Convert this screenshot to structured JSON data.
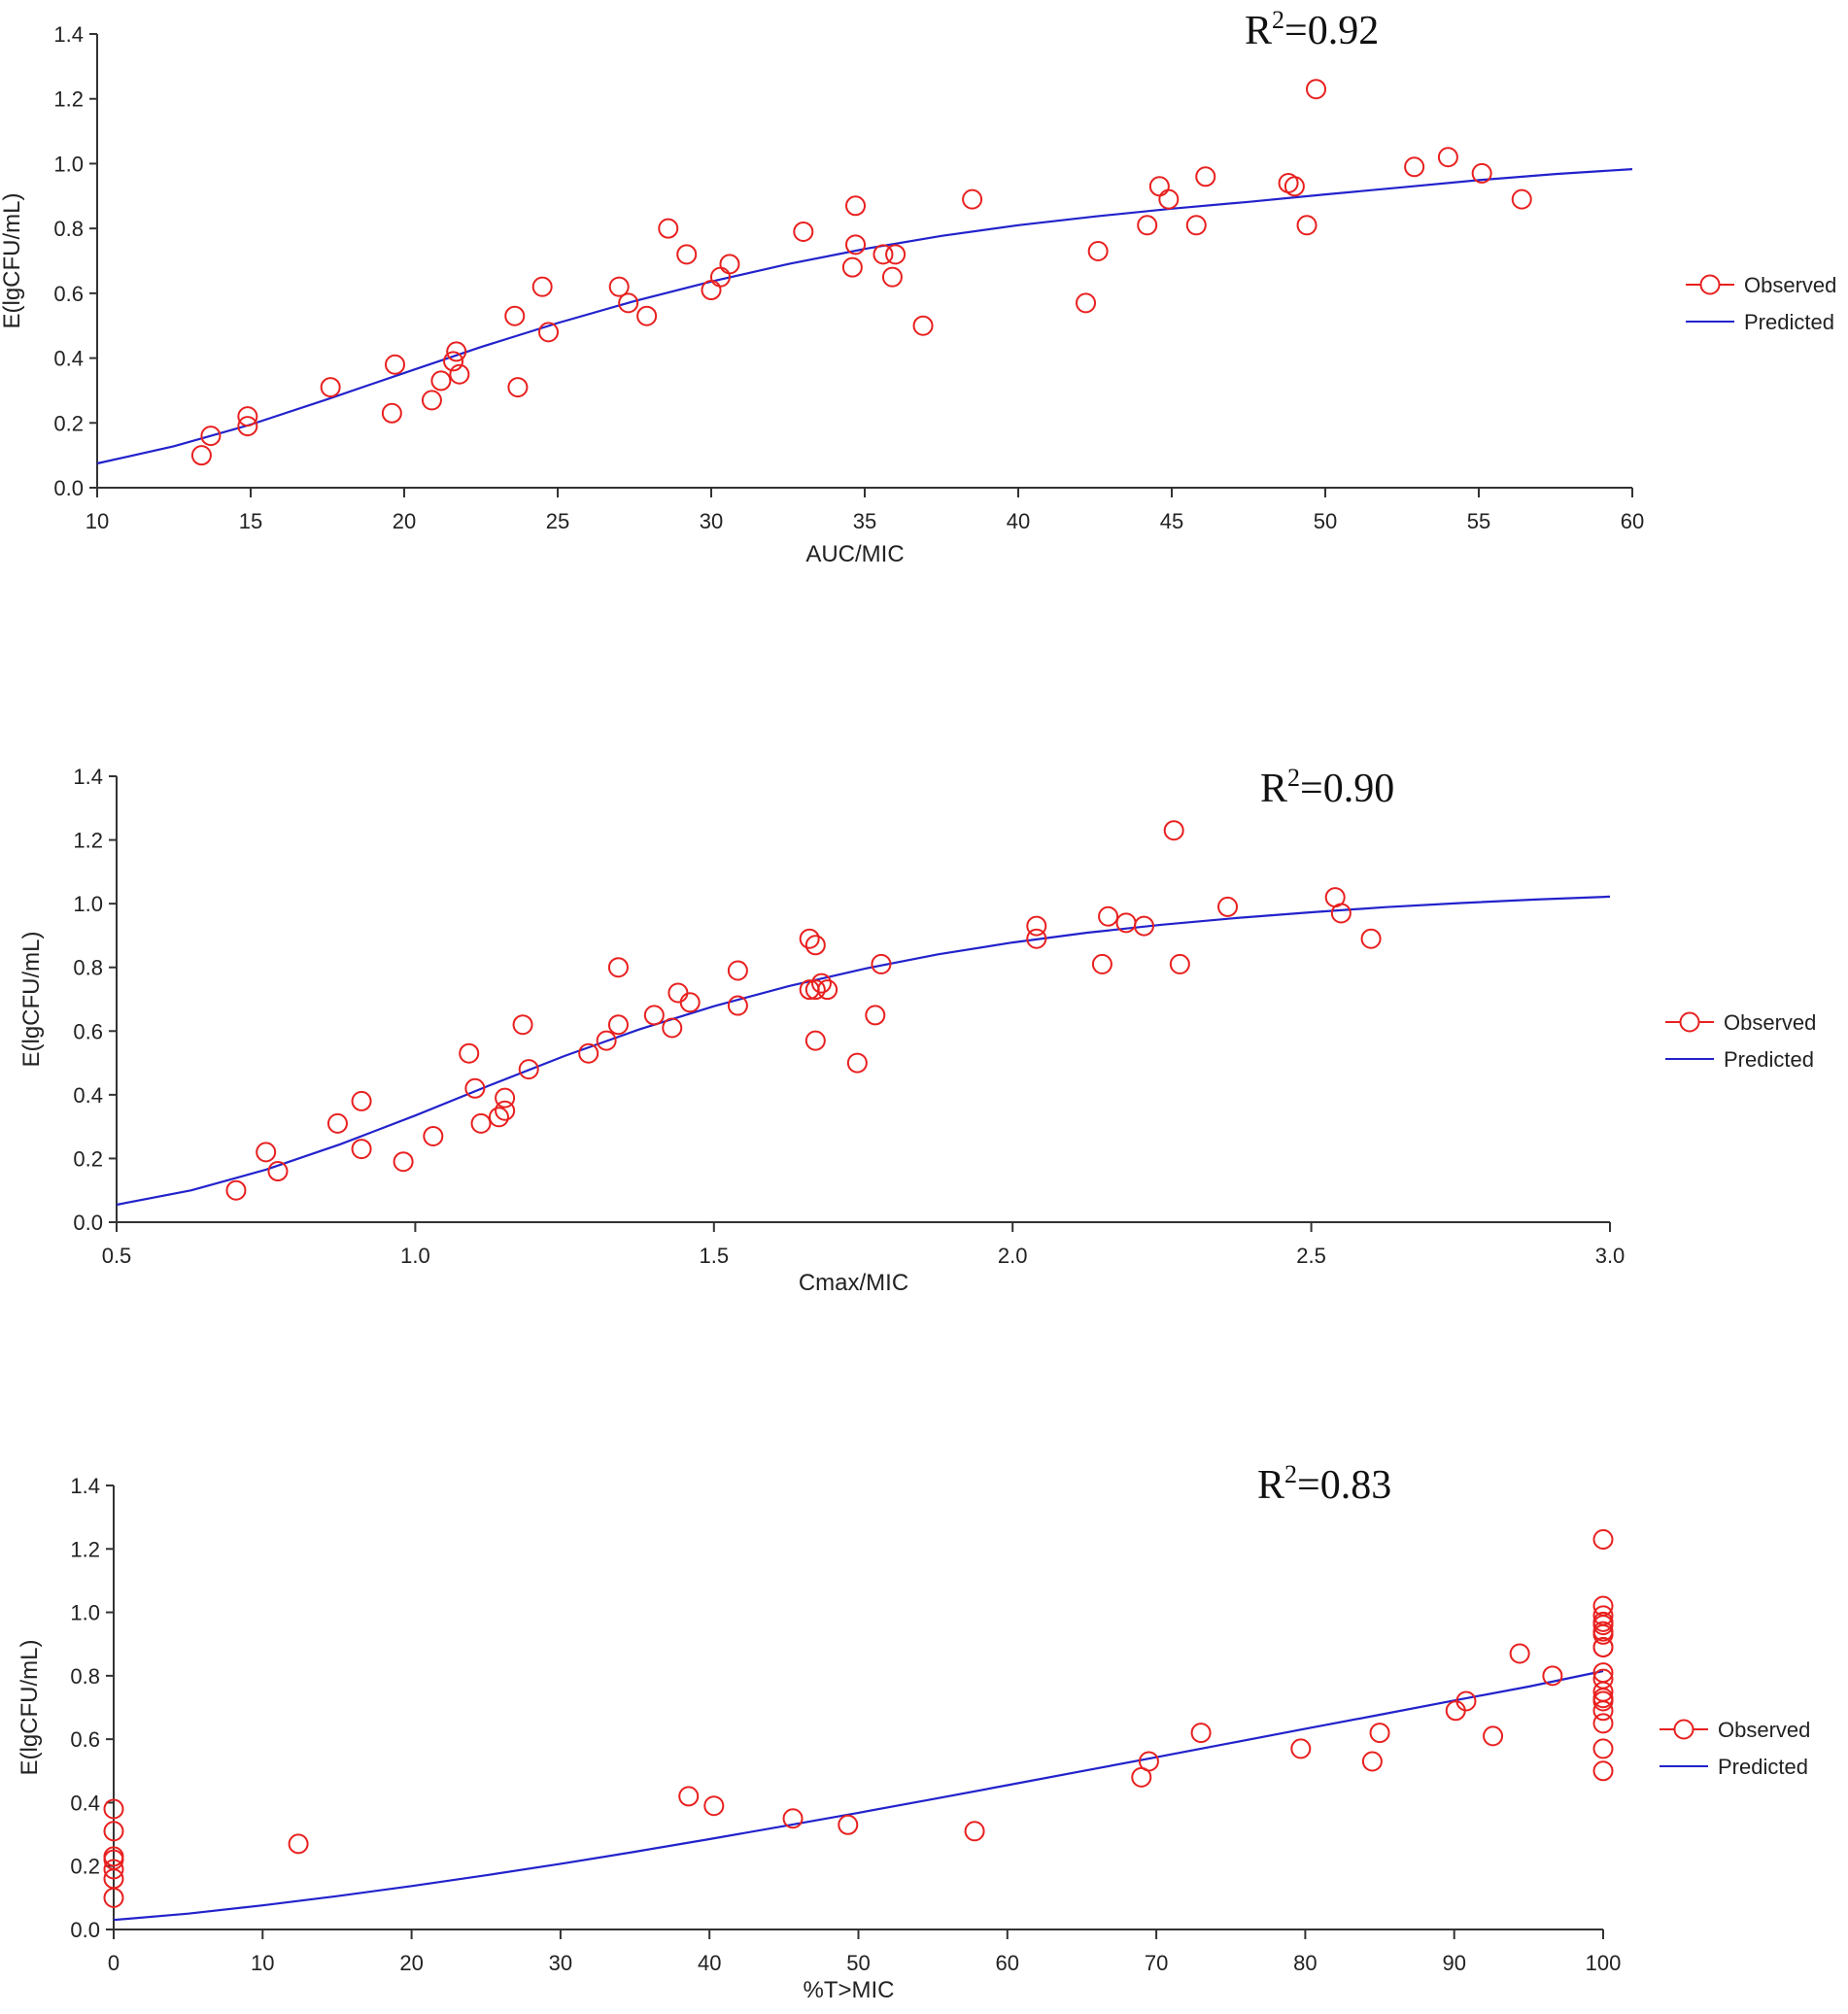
{
  "chart_data": [
    {
      "type": "scatter",
      "title": "",
      "xlabel": "AUC/MIC",
      "ylabel": "E(lgCFU/mL)",
      "annotation": {
        "prefix": "R",
        "sup": "2",
        "value": "=0.92"
      },
      "xlim": [
        10,
        60
      ],
      "ylim": [
        0.0,
        1.4
      ],
      "xticks": [
        10,
        15,
        20,
        25,
        30,
        35,
        40,
        45,
        50,
        55,
        60
      ],
      "xtick_labels": [
        "10",
        "15",
        "20",
        "25",
        "30",
        "35",
        "40",
        "45",
        "50",
        "55",
        "60"
      ],
      "yticks": [
        0.0,
        0.2,
        0.4,
        0.6,
        0.8,
        1.0,
        1.2,
        1.4
      ],
      "ytick_labels": [
        "0.0",
        "0.2",
        "0.4",
        "0.6",
        "0.8",
        "1.0",
        "1.2",
        "1.4"
      ],
      "grid": false,
      "legend": {
        "position": "right",
        "observed_label": "Observed",
        "predicted_label": "Predicted"
      },
      "colors": {
        "observed": "#e8201f",
        "predicted": "#2222cc",
        "axis": "#333333"
      },
      "series": [
        {
          "name": "Observed",
          "kind": "markers",
          "x": [
            13.4,
            13.7,
            14.9,
            14.9,
            17.6,
            19.6,
            19.7,
            20.9,
            21.2,
            21.6,
            21.7,
            21.8,
            23.6,
            23.7,
            24.5,
            24.7,
            27.0,
            27.3,
            27.9,
            28.6,
            29.2,
            30.0,
            30.3,
            30.6,
            33.0,
            34.6,
            34.7,
            34.7,
            35.6,
            35.9,
            36.0,
            36.9,
            38.5,
            42.2,
            42.6,
            44.2,
            44.6,
            44.9,
            45.8,
            46.1,
            48.8,
            49.0,
            49.4,
            49.7,
            52.9,
            54.0,
            55.1,
            56.4
          ],
          "y": [
            0.1,
            0.16,
            0.19,
            0.22,
            0.31,
            0.23,
            0.38,
            0.27,
            0.33,
            0.39,
            0.42,
            0.35,
            0.53,
            0.31,
            0.62,
            0.48,
            0.62,
            0.57,
            0.53,
            0.8,
            0.72,
            0.61,
            0.65,
            0.69,
            0.79,
            0.68,
            0.87,
            0.75,
            0.72,
            0.65,
            0.72,
            0.5,
            0.89,
            0.57,
            0.73,
            0.81,
            0.93,
            0.89,
            0.81,
            0.96,
            0.94,
            0.93,
            0.81,
            1.23,
            0.99,
            1.02,
            0.97,
            0.89
          ]
        },
        {
          "name": "Predicted",
          "kind": "line",
          "x": [
            10,
            12.5,
            15,
            17.5,
            20,
            22.5,
            25,
            27.5,
            30,
            32.5,
            35,
            37.5,
            40,
            42.5,
            45,
            47.5,
            50,
            52.5,
            55,
            57.5,
            60
          ],
          "y": [
            0.075,
            0.128,
            0.195,
            0.273,
            0.354,
            0.434,
            0.508,
            0.576,
            0.636,
            0.69,
            0.737,
            0.777,
            0.81,
            0.837,
            0.861,
            0.882,
            0.905,
            0.927,
            0.949,
            0.968,
            0.983
          ]
        }
      ]
    },
    {
      "type": "scatter",
      "title": "",
      "xlabel": "Cmax/MIC",
      "ylabel": "E(lgCFU/mL)",
      "annotation": {
        "prefix": "R",
        "sup": "2",
        "value": "=0.90"
      },
      "xlim": [
        0.5,
        3.0
      ],
      "ylim": [
        0.0,
        1.4
      ],
      "xticks": [
        0.5,
        1.0,
        1.5,
        2.0,
        2.5,
        3.0
      ],
      "xtick_labels": [
        "0.5",
        "1.0",
        "1.5",
        "2.0",
        "2.5",
        "3.0"
      ],
      "yticks": [
        0.0,
        0.2,
        0.4,
        0.6,
        0.8,
        1.0,
        1.2,
        1.4
      ],
      "ytick_labels": [
        "0.0",
        "0.2",
        "0.4",
        "0.6",
        "0.8",
        "1.0",
        "1.2",
        "1.4"
      ],
      "grid": false,
      "legend": {
        "position": "right",
        "observed_label": "Observed",
        "predicted_label": "Predicted"
      },
      "colors": {
        "observed": "#e8201f",
        "predicted": "#2222cc",
        "axis": "#333333"
      },
      "series": [
        {
          "name": "Observed",
          "kind": "markers",
          "x": [
            0.7,
            0.75,
            0.77,
            0.87,
            0.91,
            0.91,
            0.98,
            1.03,
            1.09,
            1.1,
            1.11,
            1.14,
            1.15,
            1.15,
            1.18,
            1.19,
            1.29,
            1.32,
            1.34,
            1.34,
            1.4,
            1.43,
            1.44,
            1.46,
            1.54,
            1.54,
            1.66,
            1.66,
            1.67,
            1.67,
            1.67,
            1.68,
            1.69,
            1.74,
            1.77,
            1.78,
            2.04,
            2.04,
            2.15,
            2.16,
            2.19,
            2.22,
            2.27,
            2.28,
            2.36,
            2.54,
            2.55,
            2.6
          ],
          "y": [
            0.1,
            0.22,
            0.16,
            0.31,
            0.23,
            0.38,
            0.19,
            0.27,
            0.53,
            0.42,
            0.31,
            0.33,
            0.35,
            0.39,
            0.62,
            0.48,
            0.53,
            0.57,
            0.62,
            0.8,
            0.65,
            0.61,
            0.72,
            0.69,
            0.68,
            0.79,
            0.89,
            0.73,
            0.87,
            0.57,
            0.73,
            0.75,
            0.73,
            0.5,
            0.65,
            0.81,
            0.89,
            0.93,
            0.81,
            0.96,
            0.94,
            0.93,
            1.23,
            0.81,
            0.99,
            1.02,
            0.97,
            0.89
          ]
        },
        {
          "name": "Predicted",
          "kind": "line",
          "x": [
            0.5,
            0.625,
            0.75,
            0.875,
            1.0,
            1.125,
            1.25,
            1.375,
            1.5,
            1.625,
            1.75,
            1.875,
            2.0,
            2.125,
            2.25,
            2.375,
            2.5,
            2.625,
            2.75,
            2.875,
            3.0
          ],
          "y": [
            0.055,
            0.1,
            0.165,
            0.245,
            0.335,
            0.43,
            0.522,
            0.605,
            0.678,
            0.741,
            0.795,
            0.841,
            0.878,
            0.909,
            0.934,
            0.955,
            0.973,
            0.989,
            1.002,
            1.013,
            1.022
          ]
        }
      ]
    },
    {
      "type": "scatter",
      "title": "",
      "xlabel": "%T>MIC",
      "ylabel": "E(lgCFU/mL)",
      "annotation": {
        "prefix": "R",
        "sup": "2",
        "value": "=0.83"
      },
      "xlim": [
        0,
        100
      ],
      "ylim": [
        0.0,
        1.4
      ],
      "xticks": [
        0,
        10,
        20,
        30,
        40,
        50,
        60,
        70,
        80,
        90,
        100
      ],
      "xtick_labels": [
        "0",
        "10",
        "20",
        "30",
        "40",
        "50",
        "60",
        "70",
        "80",
        "90",
        "100"
      ],
      "yticks": [
        0.0,
        0.2,
        0.4,
        0.6,
        0.8,
        1.0,
        1.2,
        1.4
      ],
      "ytick_labels": [
        "0.0",
        "0.2",
        "0.4",
        "0.6",
        "0.8",
        "1.0",
        "1.2",
        "1.4"
      ],
      "grid": false,
      "legend": {
        "position": "right",
        "observed_label": "Observed",
        "predicted_label": "Predicted"
      },
      "colors": {
        "observed": "#e8201f",
        "predicted": "#2222cc",
        "axis": "#333333"
      },
      "series": [
        {
          "name": "Observed",
          "kind": "markers",
          "x": [
            0,
            0,
            0,
            0,
            0,
            0,
            0,
            12.4,
            38.6,
            40.3,
            45.6,
            49.3,
            57.8,
            69.0,
            69.5,
            73.0,
            79.7,
            84.5,
            85.0,
            90.1,
            90.8,
            92.6,
            94.4,
            96.6,
            100,
            100,
            100,
            100,
            100,
            100,
            100,
            100,
            100,
            100,
            100,
            100,
            100,
            100,
            100,
            100,
            100,
            100
          ],
          "y": [
            0.1,
            0.16,
            0.19,
            0.22,
            0.23,
            0.31,
            0.38,
            0.27,
            0.42,
            0.39,
            0.35,
            0.33,
            0.31,
            0.48,
            0.53,
            0.62,
            0.57,
            0.53,
            0.62,
            0.69,
            0.72,
            0.61,
            0.87,
            0.8,
            1.23,
            1.02,
            0.99,
            0.97,
            0.96,
            0.94,
            0.93,
            0.89,
            0.81,
            0.79,
            0.75,
            0.73,
            0.72,
            0.69,
            0.65,
            0.57,
            0.5,
            0.89
          ]
        },
        {
          "name": "Predicted",
          "kind": "line",
          "x": [
            0,
            5,
            10,
            15,
            20,
            25,
            30,
            35,
            40,
            45,
            50,
            55,
            60,
            65,
            70,
            75,
            80,
            85,
            90,
            95,
            100
          ],
          "y": [
            0.03,
            0.05,
            0.076,
            0.105,
            0.137,
            0.171,
            0.207,
            0.245,
            0.285,
            0.326,
            0.368,
            0.411,
            0.455,
            0.499,
            0.543,
            0.588,
            0.633,
            0.677,
            0.722,
            0.766,
            0.815
          ]
        }
      ]
    }
  ]
}
